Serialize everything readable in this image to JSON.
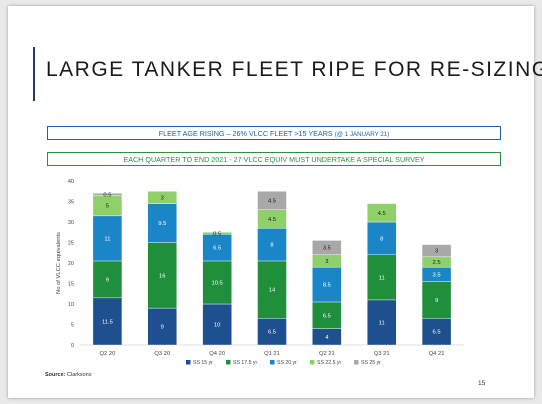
{
  "slide": {
    "title": "LARGE TANKER FLEET RIPE FOR RE-SIZING",
    "banner_top_main": "FLEET AGE RISING – 26% VLCC FLEET >15 YEARS ",
    "banner_top_small": "(@ 1 JANUARY 21)",
    "banner_bottom": "EACH QUARTER TO END 2021 - 27 VLCC EQUIV MUST UNDERTAKE A SPECIAL SURVEY",
    "source_label": "Source:",
    "source_value": "Clarksons",
    "page_number": "15"
  },
  "chart_data": {
    "type": "bar",
    "stacked": true,
    "categories": [
      "Q2 20",
      "Q3 20",
      "Q4 20",
      "Q1 21",
      "Q2 21",
      "Q3 21",
      "Q4 21"
    ],
    "ylabel": "No of VLCC equivalents",
    "ylim": [
      0,
      40
    ],
    "yticks": [
      0,
      5,
      10,
      15,
      20,
      25,
      30,
      35,
      40
    ],
    "legend_position": "bottom",
    "series": [
      {
        "name": "SS 15 yr",
        "color": "#1e4f8f",
        "label_color": "#ffffff",
        "values": [
          11.5,
          9,
          10,
          6.5,
          4,
          11,
          6.5
        ],
        "labels": [
          "11.5",
          "9",
          "10",
          "6.5",
          "4",
          "11",
          "6.5"
        ]
      },
      {
        "name": "SS 17.5 yr",
        "color": "#1f8f3c",
        "label_color": "#ffffff",
        "values": [
          9,
          16,
          10.5,
          14,
          6.5,
          11,
          9
        ],
        "labels": [
          "9",
          "16",
          "10.5",
          "14",
          "6.5",
          "11",
          "9"
        ]
      },
      {
        "name": "SS 20 yr",
        "color": "#1a86c8",
        "label_color": "#ffffff",
        "values": [
          11,
          9.5,
          6.5,
          8,
          8.5,
          8,
          3.5
        ],
        "labels": [
          "11",
          "9.5",
          "6.5",
          "8",
          "8.5",
          "8",
          "3.5"
        ]
      },
      {
        "name": "SS 22.5 yr",
        "color": "#8fd06a",
        "label_color": "#1b1b1b",
        "values": [
          5,
          3,
          0.5,
          4.5,
          3,
          4.5,
          2.5
        ],
        "labels": [
          "5",
          "3",
          "0.5",
          "4.5",
          "3",
          "4.5",
          "2.5"
        ]
      },
      {
        "name": "SS 25 yr",
        "color": "#a8a8a8",
        "label_color": "#1b1b1b",
        "values": [
          0.5,
          0,
          0,
          4.5,
          3.5,
          0,
          3
        ],
        "labels": [
          "0.5",
          "",
          "",
          "4.5",
          "3.5",
          "",
          "3"
        ]
      }
    ]
  }
}
